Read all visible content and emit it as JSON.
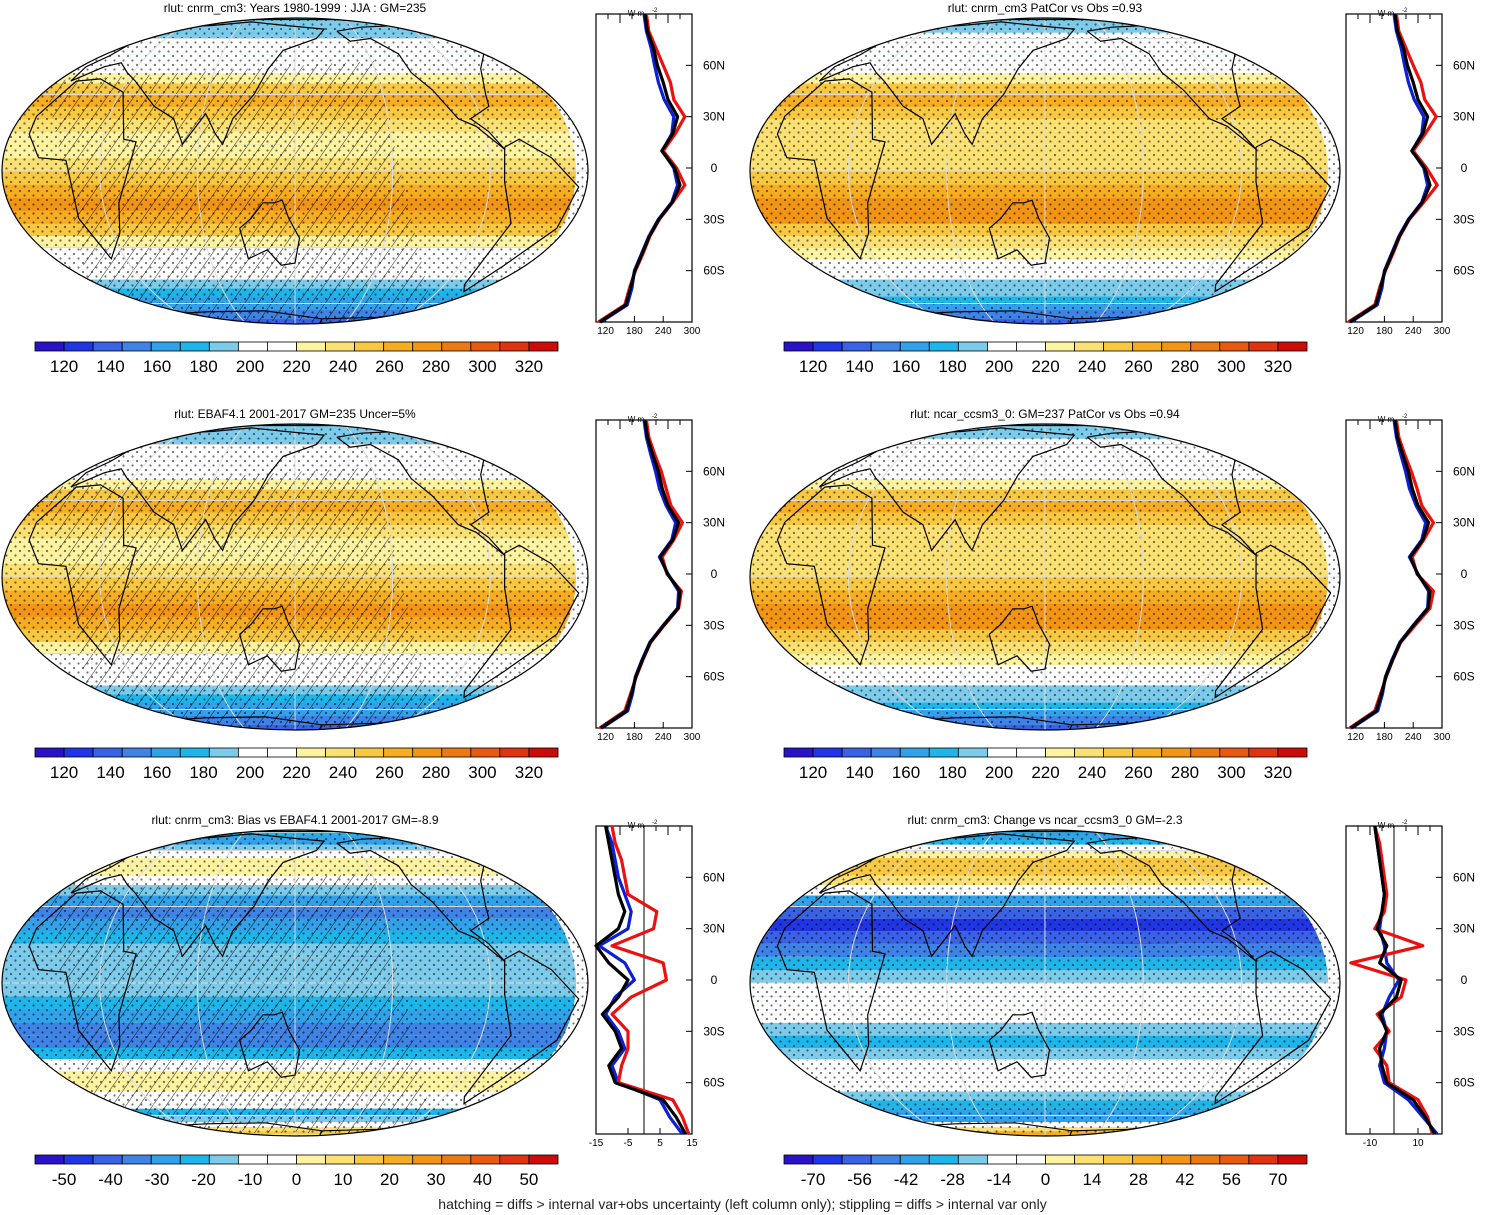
{
  "colors": {
    "scale": [
      "#2a12c9",
      "#1f35e6",
      "#3a62e5",
      "#3f83e6",
      "#31a2ea",
      "#1eb6ea",
      "#7dcbea",
      "#ffffff",
      "#ffffff",
      "#fdf3a1",
      "#fbe173",
      "#f8c842",
      "#f6ad22",
      "#f29515",
      "#ec7a12",
      "#e75a10",
      "#e0330f",
      "#cd0c0a"
    ],
    "land": "#000000",
    "grid": "#dcdcdc",
    "obs": "#0a1fd6",
    "model": "#ee0f0f",
    "ref": "#000000"
  },
  "footnote": "hatching = diffs > internal var+obs uncertainty (left column only); stippling = diffs > internal var only",
  "zonal_axis_labels": {
    "units": "W m",
    "superscript": "-2"
  },
  "lat_labels": [
    "60N",
    "30N",
    "0",
    "30S",
    "60S"
  ],
  "chart_data": [
    {
      "id": "p1",
      "type": "heatmap",
      "title": "rlut: cnrm_cm3: Years 1980-1999 : JJA : GM=235",
      "colorbar_ticks": [
        "120",
        "140",
        "160",
        "180",
        "200",
        "220",
        "240",
        "260",
        "280",
        "300",
        "320"
      ],
      "zonal_ticks": [
        "120",
        "180",
        "240",
        "300"
      ],
      "zonal_xlim": [
        100,
        300
      ],
      "zonal_lat": [
        -90,
        -80,
        -70,
        -60,
        -50,
        -40,
        -30,
        -20,
        -10,
        0,
        10,
        20,
        30,
        40,
        50,
        60,
        70,
        80,
        90
      ],
      "series": [
        {
          "name": "obs",
          "values": [
            110,
            165,
            175,
            180,
            195,
            210,
            230,
            258,
            270,
            262,
            238,
            258,
            262,
            242,
            230,
            222,
            215,
            205,
            200
          ]
        },
        {
          "name": "model",
          "values": [
            105,
            160,
            170,
            182,
            198,
            212,
            232,
            260,
            285,
            268,
            240,
            265,
            285,
            262,
            255,
            240,
            225,
            210,
            205
          ]
        },
        {
          "name": "ref",
          "values": [
            108,
            162,
            172,
            181,
            196,
            211,
            231,
            259,
            275,
            264,
            237,
            260,
            270,
            250,
            240,
            228,
            220,
            207,
            202
          ]
        }
      ]
    },
    {
      "id": "p2",
      "type": "heatmap",
      "title": "rlut: cnrm_cm3 PatCor vs Obs =0.93",
      "colorbar_ticks": [
        "120",
        "140",
        "160",
        "180",
        "200",
        "220",
        "240",
        "260",
        "280",
        "300",
        "320"
      ],
      "zonal_ticks": [
        "120",
        "180",
        "240",
        "300"
      ],
      "zonal_xlim": [
        100,
        300
      ],
      "zonal_lat": [
        -90,
        -80,
        -70,
        -60,
        -50,
        -40,
        -30,
        -20,
        -10,
        0,
        10,
        20,
        30,
        40,
        50,
        60,
        70,
        80,
        90
      ],
      "series": [
        {
          "name": "obs",
          "values": [
            110,
            165,
            175,
            180,
            195,
            210,
            230,
            258,
            270,
            262,
            238,
            258,
            262,
            242,
            230,
            222,
            215,
            205,
            200
          ]
        },
        {
          "name": "model",
          "values": [
            105,
            160,
            170,
            182,
            198,
            212,
            232,
            262,
            290,
            268,
            240,
            265,
            288,
            264,
            256,
            240,
            225,
            210,
            205
          ]
        },
        {
          "name": "ref",
          "values": [
            108,
            162,
            172,
            181,
            196,
            211,
            231,
            259,
            275,
            264,
            237,
            260,
            270,
            250,
            240,
            228,
            220,
            207,
            202
          ]
        }
      ]
    },
    {
      "id": "p3",
      "type": "heatmap",
      "title": "rlut: EBAF4.1 2001-2017 GM=235 Uncer=5%",
      "colorbar_ticks": [
        "120",
        "140",
        "160",
        "180",
        "200",
        "220",
        "240",
        "260",
        "280",
        "300",
        "320"
      ],
      "zonal_ticks": [
        "120",
        "180",
        "240",
        "300"
      ],
      "zonal_xlim": [
        100,
        300
      ],
      "zonal_lat": [
        -90,
        -80,
        -70,
        -60,
        -50,
        -40,
        -30,
        -20,
        -10,
        0,
        10,
        20,
        30,
        40,
        50,
        60,
        70,
        80,
        90
      ],
      "series": [
        {
          "name": "obs",
          "values": [
            112,
            166,
            176,
            182,
            196,
            212,
            240,
            270,
            272,
            250,
            232,
            258,
            266,
            246,
            232,
            224,
            214,
            205,
            200
          ]
        },
        {
          "name": "model",
          "values": [
            108,
            160,
            172,
            184,
            198,
            214,
            242,
            272,
            278,
            248,
            238,
            262,
            280,
            256,
            246,
            236,
            222,
            210,
            205
          ]
        },
        {
          "name": "ref",
          "values": [
            110,
            163,
            174,
            183,
            197,
            213,
            241,
            271,
            275,
            249,
            234,
            260,
            272,
            250,
            238,
            230,
            218,
            207,
            202
          ]
        }
      ]
    },
    {
      "id": "p4",
      "type": "heatmap",
      "title": "rlut: ncar_ccsm3_0: GM=237 PatCor vs Obs =0.94",
      "colorbar_ticks": [
        "120",
        "140",
        "160",
        "180",
        "200",
        "220",
        "240",
        "260",
        "280",
        "300",
        "320"
      ],
      "zonal_ticks": [
        "120",
        "180",
        "240",
        "300"
      ],
      "zonal_xlim": [
        100,
        300
      ],
      "zonal_lat": [
        -90,
        -80,
        -70,
        -60,
        -50,
        -40,
        -30,
        -20,
        -10,
        0,
        10,
        20,
        30,
        40,
        50,
        60,
        70,
        80,
        90
      ],
      "series": [
        {
          "name": "obs",
          "values": [
            112,
            166,
            176,
            182,
            196,
            212,
            240,
            270,
            272,
            250,
            232,
            258,
            266,
            246,
            232,
            224,
            214,
            205,
            200
          ]
        },
        {
          "name": "model",
          "values": [
            108,
            160,
            172,
            184,
            198,
            214,
            244,
            275,
            282,
            248,
            238,
            262,
            282,
            258,
            248,
            236,
            222,
            210,
            205
          ]
        },
        {
          "name": "ref",
          "values": [
            110,
            163,
            174,
            183,
            197,
            213,
            241,
            271,
            275,
            249,
            234,
            260,
            272,
            250,
            238,
            230,
            218,
            207,
            202
          ]
        }
      ]
    },
    {
      "id": "p5",
      "type": "heatmap",
      "title": "rlut: cnrm_cm3: Bias vs EBAF4.1 2001-2017 GM=-8.9",
      "colorbar_ticks": [
        "-50",
        "-40",
        "-30",
        "-20",
        "-10",
        "0",
        "10",
        "20",
        "30",
        "40",
        "50"
      ],
      "zonal_ticks": [
        "-15",
        "-5",
        "5",
        "15"
      ],
      "zonal_xlim": [
        -15,
        15
      ],
      "zonal_lat": [
        -90,
        -80,
        -70,
        -60,
        -50,
        -40,
        -30,
        -20,
        -10,
        0,
        10,
        20,
        30,
        40,
        50,
        60,
        70,
        80,
        90
      ],
      "series": [
        {
          "name": "obs",
          "values": [
            12,
            8,
            5,
            -8,
            -10,
            -6,
            -8,
            -12,
            -9,
            -3,
            -6,
            -14,
            -5,
            -4,
            -6,
            -8,
            -9,
            -10,
            -12
          ]
        },
        {
          "name": "model",
          "values": [
            14,
            12,
            9,
            -8,
            -7,
            -5,
            -5,
            -10,
            -4,
            7,
            6,
            -10,
            3,
            4,
            -5,
            -6,
            -7,
            -9,
            -10
          ]
        },
        {
          "name": "ref",
          "values": [
            13,
            10,
            6,
            -9,
            -11,
            -7,
            -9,
            -13,
            -8,
            -5,
            -11,
            -15,
            -8,
            -6,
            -8,
            -9,
            -10,
            -11,
            -12
          ]
        }
      ]
    },
    {
      "id": "p6",
      "type": "heatmap",
      "title": "rlut: cnrm_cm3: Change vs ncar_ccsm3_0 GM=-2.3",
      "colorbar_ticks": [
        "-70",
        "-56",
        "-42",
        "-28",
        "-14",
        "0",
        "14",
        "28",
        "42",
        "56",
        "70"
      ],
      "zonal_ticks": [
        "-10",
        "10"
      ],
      "zonal_xlim": [
        -20,
        20
      ],
      "zonal_lat": [
        -90,
        -80,
        -70,
        -60,
        -50,
        -40,
        -30,
        -20,
        -10,
        0,
        10,
        20,
        30,
        40,
        50,
        60,
        70,
        80,
        90
      ],
      "series": [
        {
          "name": "obs",
          "values": [
            18,
            12,
            6,
            -4,
            -6,
            -4,
            -3,
            -5,
            -2,
            2,
            -3,
            -4,
            -6,
            -5,
            -4,
            -5,
            -6,
            -7,
            -8
          ]
        },
        {
          "name": "model",
          "values": [
            16,
            14,
            10,
            -2,
            -3,
            -8,
            -2,
            -7,
            3,
            5,
            -18,
            12,
            -8,
            -4,
            -3,
            -4,
            -5,
            -6,
            -8
          ]
        },
        {
          "name": "ref",
          "values": [
            17,
            13,
            8,
            -3,
            -5,
            -6,
            -3,
            -6,
            1,
            3,
            -6,
            -3,
            -7,
            -5,
            -4,
            -5,
            -6,
            -7,
            -8
          ]
        }
      ]
    }
  ]
}
